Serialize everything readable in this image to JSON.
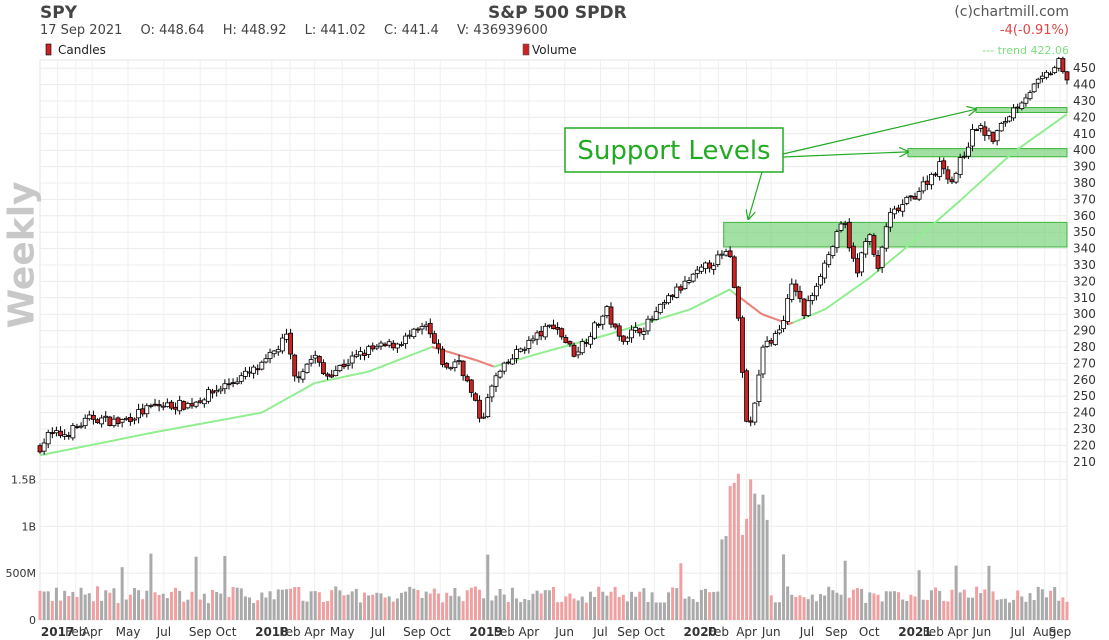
{
  "header": {
    "symbol": "SPY",
    "title": "S&P 500 SPDR",
    "copyright": "(c)chartmill.com",
    "date": "17 Sep 2021",
    "open": "O: 448.64",
    "high": "H: 448.92",
    "low": "L: 441.02",
    "close": "C: 441.4",
    "volume": "V: 436939600",
    "change": "-4(-0.91%)",
    "legend_candles": "Candles",
    "legend_volume": "Volume",
    "legend_trend": "--- trend 422.06",
    "timeframe": "Weekly"
  },
  "colors": {
    "up": "#ffffff",
    "down": "#cc2222",
    "trend_up": "#90ee90",
    "trend_down": "#f08080",
    "support": "#66cc66",
    "volume_up": "#aaaaaa",
    "volume_down": "#f0a0a0"
  },
  "chart_data": {
    "type": "candlestick",
    "price_axis": {
      "ylim": [
        205,
        455
      ],
      "ticks": [
        210,
        220,
        230,
        240,
        250,
        260,
        270,
        280,
        290,
        300,
        310,
        320,
        330,
        340,
        350,
        360,
        370,
        380,
        390,
        400,
        410,
        420,
        430,
        440,
        450
      ]
    },
    "volume_axis": {
      "ylim": [
        0,
        1600000000
      ],
      "ticks": [
        {
          "v": 0,
          "label": "0"
        },
        {
          "v": 500000000,
          "label": "500M"
        },
        {
          "v": 1000000000,
          "label": "1B"
        },
        {
          "v": 1500000000,
          "label": "1.5B"
        }
      ]
    },
    "time_axis": {
      "start": "2016-12-02",
      "end": "2021-09-17",
      "labels": [
        {
          "date": "2017-01-01",
          "label": "2017",
          "bold": true
        },
        {
          "date": "2017-02-01",
          "label": "Feb"
        },
        {
          "date": "2017-03-01",
          "label": "Apr"
        },
        {
          "date": "2017-05-01",
          "label": "May"
        },
        {
          "date": "2017-07-01",
          "label": "Jul"
        },
        {
          "date": "2017-09-01",
          "label": "Sep"
        },
        {
          "date": "2017-10-15",
          "label": "Oct"
        },
        {
          "date": "2018-01-01",
          "label": "2018",
          "bold": true
        },
        {
          "date": "2018-02-01",
          "label": "Feb"
        },
        {
          "date": "2018-03-15",
          "label": "Apr"
        },
        {
          "date": "2018-05-01",
          "label": "May"
        },
        {
          "date": "2018-07-01",
          "label": "Jul"
        },
        {
          "date": "2018-09-01",
          "label": "Sep"
        },
        {
          "date": "2018-10-15",
          "label": "Oct"
        },
        {
          "date": "2019-01-01",
          "label": "2019",
          "bold": true
        },
        {
          "date": "2019-02-01",
          "label": "Feb"
        },
        {
          "date": "2019-03-15",
          "label": "Apr"
        },
        {
          "date": "2019-05-15",
          "label": "Jun"
        },
        {
          "date": "2019-07-15",
          "label": "Jul"
        },
        {
          "date": "2019-09-01",
          "label": "Sep"
        },
        {
          "date": "2019-10-15",
          "label": "Oct"
        },
        {
          "date": "2020-01-01",
          "label": "2020",
          "bold": true
        },
        {
          "date": "2020-02-01",
          "label": "Feb"
        },
        {
          "date": "2020-03-20",
          "label": "Apr"
        },
        {
          "date": "2020-05-01",
          "label": "Jun"
        },
        {
          "date": "2020-07-01",
          "label": "Jul"
        },
        {
          "date": "2020-08-20",
          "label": "Sep"
        },
        {
          "date": "2020-10-15",
          "label": "Oct"
        },
        {
          "date": "2021-01-01",
          "label": "2021",
          "bold": true
        },
        {
          "date": "2021-02-01",
          "label": "Feb"
        },
        {
          "date": "2021-03-15",
          "label": "Apr"
        },
        {
          "date": "2021-04-25",
          "label": "Jun"
        },
        {
          "date": "2021-06-25",
          "label": "Jul"
        },
        {
          "date": "2021-08-10",
          "label": "Aug"
        },
        {
          "date": "2021-09-05",
          "label": "Sep"
        }
      ]
    },
    "price_path": [
      {
        "t": "2016-12-02",
        "p": 219
      },
      {
        "t": "2016-12-16",
        "p": 226
      },
      {
        "t": "2017-01-15",
        "p": 227
      },
      {
        "t": "2017-03-01",
        "p": 237
      },
      {
        "t": "2017-04-15",
        "p": 234
      },
      {
        "t": "2017-06-15",
        "p": 244
      },
      {
        "t": "2017-08-15",
        "p": 245
      },
      {
        "t": "2017-10-15",
        "p": 257
      },
      {
        "t": "2017-12-15",
        "p": 268
      },
      {
        "t": "2018-01-26",
        "p": 286
      },
      {
        "t": "2018-02-09",
        "p": 261
      },
      {
        "t": "2018-03-15",
        "p": 275
      },
      {
        "t": "2018-04-01",
        "p": 262
      },
      {
        "t": "2018-05-15",
        "p": 272
      },
      {
        "t": "2018-06-15",
        "p": 278
      },
      {
        "t": "2018-08-01",
        "p": 282
      },
      {
        "t": "2018-09-21",
        "p": 292
      },
      {
        "t": "2018-10-26",
        "p": 266
      },
      {
        "t": "2018-11-15",
        "p": 273
      },
      {
        "t": "2018-12-24",
        "p": 235
      },
      {
        "t": "2019-01-15",
        "p": 260
      },
      {
        "t": "2019-03-01",
        "p": 279
      },
      {
        "t": "2019-04-26",
        "p": 294
      },
      {
        "t": "2019-06-01",
        "p": 276
      },
      {
        "t": "2019-07-26",
        "p": 302
      },
      {
        "t": "2019-08-15",
        "p": 285
      },
      {
        "t": "2019-10-01",
        "p": 293
      },
      {
        "t": "2019-11-15",
        "p": 312
      },
      {
        "t": "2020-01-15",
        "p": 330
      },
      {
        "t": "2020-02-19",
        "p": 338
      },
      {
        "t": "2020-03-06",
        "p": 297
      },
      {
        "t": "2020-03-23",
        "p": 222
      },
      {
        "t": "2020-04-15",
        "p": 278
      },
      {
        "t": "2020-05-15",
        "p": 290
      },
      {
        "t": "2020-06-08",
        "p": 320
      },
      {
        "t": "2020-06-26",
        "p": 300
      },
      {
        "t": "2020-07-20",
        "p": 322
      },
      {
        "t": "2020-09-02",
        "p": 357
      },
      {
        "t": "2020-09-24",
        "p": 323
      },
      {
        "t": "2020-10-12",
        "p": 352
      },
      {
        "t": "2020-10-30",
        "p": 326
      },
      {
        "t": "2020-11-15",
        "p": 358
      },
      {
        "t": "2021-01-01",
        "p": 373
      },
      {
        "t": "2021-02-15",
        "p": 392
      },
      {
        "t": "2021-03-05",
        "p": 381
      },
      {
        "t": "2021-04-15",
        "p": 415
      },
      {
        "t": "2021-05-14",
        "p": 407
      },
      {
        "t": "2021-06-15",
        "p": 424
      },
      {
        "t": "2021-07-15",
        "p": 436
      },
      {
        "t": "2021-08-15",
        "p": 446
      },
      {
        "t": "2021-09-03",
        "p": 453
      },
      {
        "t": "2021-09-17",
        "p": 441
      }
    ],
    "trend_path": [
      {
        "t": "2016-12-02",
        "p": 214
      },
      {
        "t": "2017-06-15",
        "p": 228
      },
      {
        "t": "2017-12-15",
        "p": 240
      },
      {
        "t": "2018-03-15",
        "p": 258
      },
      {
        "t": "2018-06-15",
        "p": 265
      },
      {
        "t": "2018-10-01",
        "p": 280
      },
      {
        "t": "2018-12-15",
        "p": 272
      },
      {
        "t": "2019-01-15",
        "p": 268
      },
      {
        "t": "2019-04-01",
        "p": 276
      },
      {
        "t": "2019-08-01",
        "p": 288
      },
      {
        "t": "2019-12-15",
        "p": 303
      },
      {
        "t": "2020-02-20",
        "p": 315
      },
      {
        "t": "2020-04-15",
        "p": 300
      },
      {
        "t": "2020-06-01",
        "p": 294
      },
      {
        "t": "2020-08-01",
        "p": 303
      },
      {
        "t": "2020-10-15",
        "p": 322
      },
      {
        "t": "2020-12-15",
        "p": 340
      },
      {
        "t": "2021-03-15",
        "p": 368
      },
      {
        "t": "2021-06-15",
        "p": 398
      },
      {
        "t": "2021-09-17",
        "p": 422
      }
    ],
    "trend_down_segments": [
      [
        "2018-10-01",
        "2019-01-20"
      ],
      [
        "2020-03-01",
        "2020-06-10"
      ]
    ],
    "support_levels": [
      {
        "low": 341,
        "high": 356,
        "from": "2020-02-10",
        "to": "2021-09-17"
      },
      {
        "low": 396,
        "high": 401,
        "from": "2020-12-20",
        "to": "2021-09-17"
      },
      {
        "low": 423,
        "high": 426,
        "from": "2021-04-15",
        "to": "2021-09-17"
      }
    ],
    "annotation": {
      "text": "Support Levels",
      "arrows": [
        {
          "to_date": "2020-03-23",
          "to_price": 358
        },
        {
          "to_date": "2020-12-20",
          "to_price": 399
        },
        {
          "to_date": "2021-04-15",
          "to_price": 425
        }
      ]
    }
  }
}
